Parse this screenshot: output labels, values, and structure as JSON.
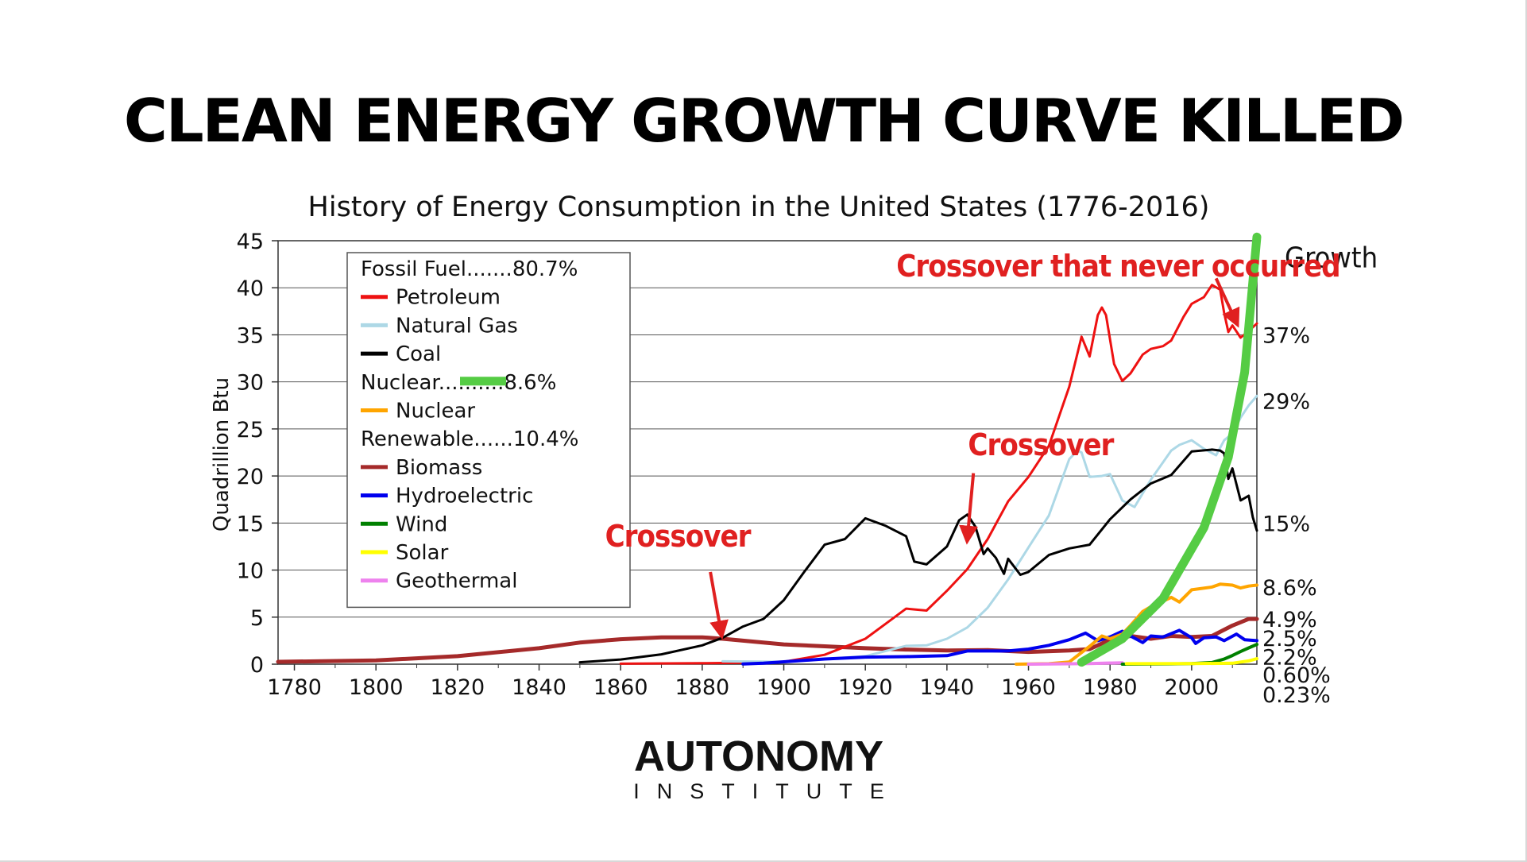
{
  "headline": "CLEAN ENERGY GROWTH CURVE KILLED",
  "logo": {
    "main": "AUTONOMY",
    "sub": "INSTITUTE"
  },
  "chart_data": {
    "type": "line",
    "title": "History of Energy Consumption in the United States (1776-2016)",
    "xlabel": "",
    "ylabel": "Quadrillion Btu",
    "xlim": [
      1776,
      2016
    ],
    "ylim": [
      0,
      45
    ],
    "x_ticks": [
      1780,
      1800,
      1820,
      1840,
      1860,
      1880,
      1900,
      1920,
      1940,
      1960,
      1980,
      2000
    ],
    "y_ticks": [
      0,
      5,
      10,
      15,
      20,
      25,
      30,
      35,
      40,
      45
    ],
    "grid": true,
    "legend_position": "top-left",
    "legend": [
      {
        "kind": "header",
        "text": "Fossil Fuel.......80.7%"
      },
      {
        "kind": "item",
        "text": "Petroleum",
        "color": "#ee1111"
      },
      {
        "kind": "item",
        "text": "Natural Gas",
        "color": "#add8e6"
      },
      {
        "kind": "item",
        "text": "Coal",
        "color": "#000000"
      },
      {
        "kind": "header",
        "text": "Nuclear",
        "dots": "..........",
        "pct": "8.6%",
        "swatch_color": "#55cc44"
      },
      {
        "kind": "item",
        "text": "Nuclear",
        "color": "#ffa500"
      },
      {
        "kind": "header",
        "text": "Renewable......10.4%"
      },
      {
        "kind": "item",
        "text": "Biomass",
        "color": "#a52a2a"
      },
      {
        "kind": "item",
        "text": "Hydroelectric",
        "color": "#0000ee"
      },
      {
        "kind": "item",
        "text": "Wind",
        "color": "#008000"
      },
      {
        "kind": "item",
        "text": "Solar",
        "color": "#ffff00"
      },
      {
        "kind": "item",
        "text": "Geothermal",
        "color": "#ee82ee"
      }
    ],
    "series": [
      {
        "name": "Biomass",
        "color": "#a52a2a",
        "width": 5,
        "points": [
          [
            1776,
            0.25
          ],
          [
            1800,
            0.4
          ],
          [
            1820,
            0.85
          ],
          [
            1840,
            1.7
          ],
          [
            1850,
            2.3
          ],
          [
            1860,
            2.65
          ],
          [
            1870,
            2.85
          ],
          [
            1880,
            2.85
          ],
          [
            1885,
            2.7
          ],
          [
            1890,
            2.5
          ],
          [
            1900,
            2.1
          ],
          [
            1910,
            1.9
          ],
          [
            1920,
            1.7
          ],
          [
            1930,
            1.55
          ],
          [
            1940,
            1.45
          ],
          [
            1950,
            1.5
          ],
          [
            1960,
            1.3
          ],
          [
            1970,
            1.45
          ],
          [
            1975,
            1.6
          ],
          [
            1980,
            2.6
          ],
          [
            1985,
            3.0
          ],
          [
            1990,
            2.7
          ],
          [
            1995,
            3.0
          ],
          [
            2000,
            2.9
          ],
          [
            2005,
            3.0
          ],
          [
            2010,
            4.1
          ],
          [
            2014,
            4.8
          ],
          [
            2016,
            4.8
          ]
        ]
      },
      {
        "name": "Petroleum",
        "color": "#ee1111",
        "width": 3,
        "points": [
          [
            1860,
            0.05
          ],
          [
            1880,
            0.1
          ],
          [
            1890,
            0.15
          ],
          [
            1900,
            0.25
          ],
          [
            1910,
            1.0
          ],
          [
            1920,
            2.7
          ],
          [
            1925,
            4.3
          ],
          [
            1930,
            5.9
          ],
          [
            1935,
            5.7
          ],
          [
            1940,
            7.8
          ],
          [
            1945,
            10.1
          ],
          [
            1950,
            13.3
          ],
          [
            1955,
            17.3
          ],
          [
            1960,
            19.9
          ],
          [
            1965,
            23.2
          ],
          [
            1970,
            29.5
          ],
          [
            1973,
            34.8
          ],
          [
            1975,
            32.7
          ],
          [
            1977,
            37.1
          ],
          [
            1978,
            37.9
          ],
          [
            1979,
            37.1
          ],
          [
            1981,
            31.9
          ],
          [
            1983,
            30.1
          ],
          [
            1985,
            30.9
          ],
          [
            1988,
            32.9
          ],
          [
            1990,
            33.5
          ],
          [
            1993,
            33.8
          ],
          [
            1995,
            34.4
          ],
          [
            1998,
            36.9
          ],
          [
            2000,
            38.3
          ],
          [
            2003,
            39.0
          ],
          [
            2005,
            40.3
          ],
          [
            2007,
            39.8
          ],
          [
            2008,
            37.3
          ],
          [
            2009,
            35.3
          ],
          [
            2010,
            36.0
          ],
          [
            2012,
            34.7
          ],
          [
            2014,
            35.4
          ],
          [
            2016,
            36.2
          ]
        ]
      },
      {
        "name": "Natural Gas",
        "color": "#add8e6",
        "width": 3,
        "points": [
          [
            1885,
            0.3
          ],
          [
            1900,
            0.25
          ],
          [
            1910,
            0.55
          ],
          [
            1920,
            0.85
          ],
          [
            1930,
            1.95
          ],
          [
            1935,
            2.0
          ],
          [
            1940,
            2.7
          ],
          [
            1945,
            3.9
          ],
          [
            1950,
            6.0
          ],
          [
            1955,
            9.0
          ],
          [
            1960,
            12.4
          ],
          [
            1965,
            15.8
          ],
          [
            1970,
            21.8
          ],
          [
            1972,
            22.7
          ],
          [
            1973,
            22.5
          ],
          [
            1975,
            19.9
          ],
          [
            1978,
            20.0
          ],
          [
            1980,
            20.2
          ],
          [
            1983,
            17.4
          ],
          [
            1986,
            16.7
          ],
          [
            1990,
            19.6
          ],
          [
            1995,
            22.7
          ],
          [
            1997,
            23.3
          ],
          [
            2000,
            23.8
          ],
          [
            2003,
            22.9
          ],
          [
            2006,
            22.2
          ],
          [
            2008,
            23.8
          ],
          [
            2010,
            24.5
          ],
          [
            2012,
            26.2
          ],
          [
            2014,
            27.5
          ],
          [
            2016,
            28.5
          ]
        ]
      },
      {
        "name": "Coal",
        "color": "#000000",
        "width": 3,
        "points": [
          [
            1850,
            0.2
          ],
          [
            1860,
            0.5
          ],
          [
            1870,
            1.05
          ],
          [
            1880,
            2.0
          ],
          [
            1885,
            2.8
          ],
          [
            1890,
            4.0
          ],
          [
            1895,
            4.8
          ],
          [
            1900,
            6.8
          ],
          [
            1905,
            9.8
          ],
          [
            1910,
            12.7
          ],
          [
            1915,
            13.3
          ],
          [
            1920,
            15.5
          ],
          [
            1925,
            14.7
          ],
          [
            1930,
            13.6
          ],
          [
            1932,
            10.9
          ],
          [
            1935,
            10.6
          ],
          [
            1940,
            12.5
          ],
          [
            1943,
            15.3
          ],
          [
            1945,
            15.9
          ],
          [
            1947,
            14.6
          ],
          [
            1949,
            11.7
          ],
          [
            1950,
            12.3
          ],
          [
            1952,
            11.3
          ],
          [
            1954,
            9.6
          ],
          [
            1955,
            11.2
          ],
          [
            1958,
            9.5
          ],
          [
            1960,
            9.8
          ],
          [
            1965,
            11.6
          ],
          [
            1970,
            12.3
          ],
          [
            1975,
            12.7
          ],
          [
            1980,
            15.4
          ],
          [
            1985,
            17.5
          ],
          [
            1990,
            19.2
          ],
          [
            1995,
            20.1
          ],
          [
            2000,
            22.6
          ],
          [
            2005,
            22.8
          ],
          [
            2007,
            22.7
          ],
          [
            2008,
            22.4
          ],
          [
            2009,
            19.7
          ],
          [
            2010,
            20.8
          ],
          [
            2012,
            17.4
          ],
          [
            2014,
            17.9
          ],
          [
            2015,
            15.6
          ],
          [
            2016,
            14.2
          ]
        ]
      },
      {
        "name": "Hydroelectric",
        "color": "#0000ee",
        "width": 4,
        "points": [
          [
            1890,
            0.02
          ],
          [
            1895,
            0.1
          ],
          [
            1900,
            0.25
          ],
          [
            1910,
            0.55
          ],
          [
            1920,
            0.75
          ],
          [
            1930,
            0.8
          ],
          [
            1940,
            0.9
          ],
          [
            1945,
            1.4
          ],
          [
            1950,
            1.4
          ],
          [
            1955,
            1.4
          ],
          [
            1960,
            1.6
          ],
          [
            1965,
            2.0
          ],
          [
            1970,
            2.6
          ],
          [
            1974,
            3.3
          ],
          [
            1977,
            2.5
          ],
          [
            1980,
            2.9
          ],
          [
            1983,
            3.5
          ],
          [
            1985,
            3.0
          ],
          [
            1988,
            2.3
          ],
          [
            1990,
            3.0
          ],
          [
            1993,
            2.9
          ],
          [
            1997,
            3.6
          ],
          [
            2000,
            2.8
          ],
          [
            2001,
            2.2
          ],
          [
            2003,
            2.8
          ],
          [
            2006,
            2.9
          ],
          [
            2008,
            2.5
          ],
          [
            2011,
            3.2
          ],
          [
            2013,
            2.6
          ],
          [
            2016,
            2.5
          ]
        ]
      },
      {
        "name": "Nuclear",
        "color": "#ffa500",
        "width": 4,
        "points": [
          [
            1957,
            0.0
          ],
          [
            1965,
            0.05
          ],
          [
            1970,
            0.24
          ],
          [
            1975,
            1.9
          ],
          [
            1978,
            3.0
          ],
          [
            1980,
            2.7
          ],
          [
            1983,
            3.2
          ],
          [
            1985,
            4.1
          ],
          [
            1988,
            5.6
          ],
          [
            1990,
            6.1
          ],
          [
            1995,
            7.1
          ],
          [
            1997,
            6.6
          ],
          [
            2000,
            7.9
          ],
          [
            2005,
            8.2
          ],
          [
            2007,
            8.5
          ],
          [
            2010,
            8.4
          ],
          [
            2012,
            8.1
          ],
          [
            2014,
            8.3
          ],
          [
            2016,
            8.4
          ]
        ]
      },
      {
        "name": "Geothermal",
        "color": "#ee82ee",
        "width": 4,
        "points": [
          [
            1960,
            0.0
          ],
          [
            1975,
            0.07
          ],
          [
            1983,
            0.15
          ]
        ]
      },
      {
        "name": "Wind",
        "color": "#008000",
        "width": 4,
        "points": [
          [
            1983,
            0.0
          ],
          [
            1995,
            0.03
          ],
          [
            2000,
            0.06
          ],
          [
            2005,
            0.18
          ],
          [
            2008,
            0.55
          ],
          [
            2010,
            0.92
          ],
          [
            2012,
            1.34
          ],
          [
            2014,
            1.73
          ],
          [
            2016,
            2.1
          ]
        ]
      },
      {
        "name": "Solar",
        "color": "#ffff00",
        "width": 4,
        "points": [
          [
            1984,
            0.05
          ],
          [
            2000,
            0.06
          ],
          [
            2010,
            0.1
          ],
          [
            2014,
            0.35
          ],
          [
            2016,
            0.58
          ]
        ]
      },
      {
        "name": "Growth",
        "color": "#55cc44",
        "width": 11,
        "points": [
          [
            1973,
            0.2
          ],
          [
            1983,
            2.7
          ],
          [
            1993,
            7.0
          ],
          [
            2003,
            14.5
          ],
          [
            2009,
            22.0
          ],
          [
            2013,
            31.0
          ],
          [
            2016,
            45.4
          ]
        ]
      }
    ],
    "right_labels": [
      {
        "text": "Growth",
        "y": 43.0
      },
      {
        "text": "37%",
        "y": 35.0
      },
      {
        "text": "29%",
        "y": 28.0
      },
      {
        "text": "15%",
        "y": 15.0
      },
      {
        "text": "8.6%",
        "y": 8.2
      },
      {
        "text": "4.9%",
        "y": 4.8
      },
      {
        "text": "2.5%",
        "y": 2.8
      },
      {
        "text": "2.2%",
        "y": 0.8
      },
      {
        "text": "0.60%",
        "y": -1.1
      },
      {
        "text": "0.23%",
        "y": -3.2
      }
    ],
    "annotations": [
      {
        "text": "Crossover that never occurred",
        "x": 1982,
        "y": 41.2,
        "arrow_from": [
          2006,
          41.0
        ],
        "arrow_to": [
          2011,
          36.3
        ]
      },
      {
        "text": "Crossover",
        "x": 1963,
        "y": 22.2,
        "arrow_from": [
          1946.5,
          20.3
        ],
        "arrow_to": [
          1945,
          13.3
        ]
      },
      {
        "text": "Crossover",
        "x": 1874,
        "y": 12.5,
        "arrow_from": [
          1882,
          9.8
        ],
        "arrow_to": [
          1884.7,
          3.2
        ]
      }
    ]
  }
}
